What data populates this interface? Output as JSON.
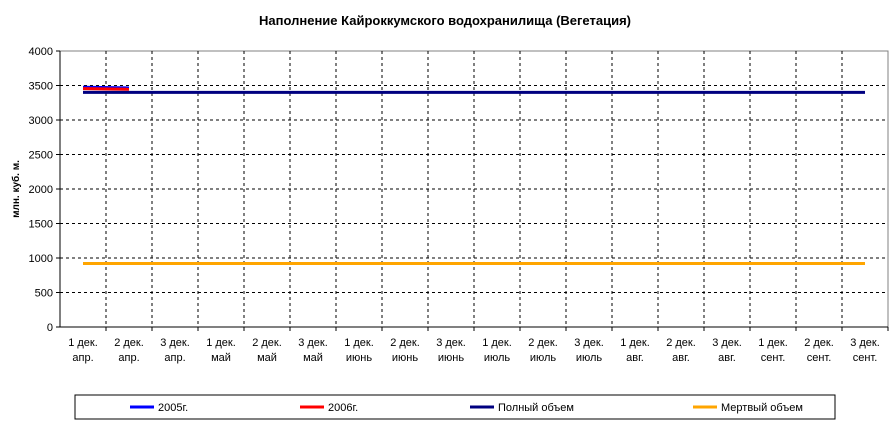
{
  "chart_data": {
    "type": "line",
    "title": "Наполнение Кайроккумского водохранилища (Вегетация)",
    "y_label": "млн. куб. м.",
    "categories": [
      "1 дек. апр.",
      "2 дек. апр.",
      "3 дек. апр.",
      "1 дек. май",
      "2 дек. май",
      "3 дек. май",
      "1 дек. июнь",
      "2 дек. июнь",
      "3 дек. июнь",
      "1 дек. июль",
      "2 дек. июль",
      "3 дек. июль",
      "1 дек. авг.",
      "2 дек. авг.",
      "3 дек. авг.",
      "1 дек. сент.",
      "2 дек. сент.",
      "3 дек. сент."
    ],
    "series": [
      {
        "name": "2005г.",
        "color": "#0000ff",
        "values": [
          3475,
          3465,
          null,
          null,
          null,
          null,
          null,
          null,
          null,
          null,
          null,
          null,
          null,
          null,
          null,
          null,
          null,
          null
        ]
      },
      {
        "name": "2006г.",
        "color": "#ff0000",
        "values": [
          3455,
          3445,
          null,
          null,
          null,
          null,
          null,
          null,
          null,
          null,
          null,
          null,
          null,
          null,
          null,
          null,
          null,
          null
        ]
      },
      {
        "name": "Полный объем",
        "color": "#000080",
        "values": [
          3400,
          3400,
          3400,
          3400,
          3400,
          3400,
          3400,
          3400,
          3400,
          3400,
          3400,
          3400,
          3400,
          3400,
          3400,
          3400,
          3400,
          3400
        ]
      },
      {
        "name": "Мертвый объем",
        "color": "#ffa500",
        "values": [
          920,
          920,
          920,
          920,
          920,
          920,
          920,
          920,
          920,
          920,
          920,
          920,
          920,
          920,
          920,
          920,
          920,
          920
        ]
      }
    ],
    "ylim": [
      0,
      4000
    ],
    "yticks": [
      0,
      500,
      1000,
      1500,
      2000,
      2500,
      3000,
      3500,
      4000
    ],
    "grid": true,
    "legend": "bottom"
  }
}
